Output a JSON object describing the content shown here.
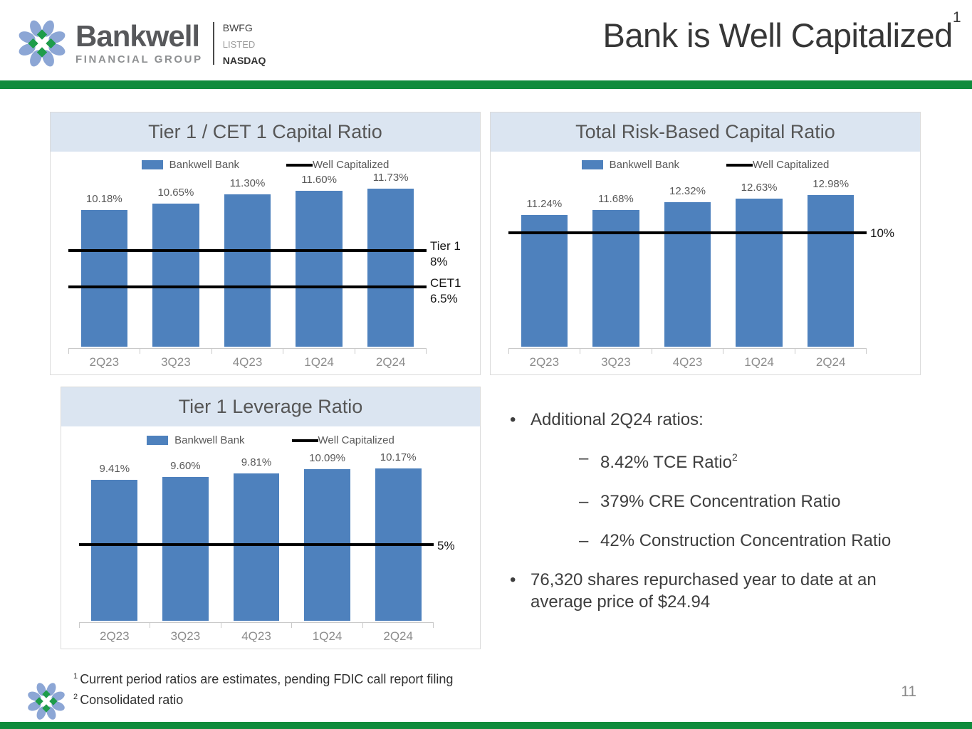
{
  "header": {
    "logo_name": "Bankwell",
    "logo_subname": "FINANCIAL GROUP",
    "ticker": "BWFG",
    "listed": "LISTED",
    "exchange": "NASDAQ",
    "title": "Bank is Well Capitalized",
    "title_superscript": "1"
  },
  "colors": {
    "accent_green": "#0f8b3c",
    "bar_blue": "#4e81bd",
    "panel_header_blue": "#dbe5f1",
    "threshold_black": "#000000"
  },
  "chart_data": [
    {
      "type": "bar",
      "title": "Tier 1 / CET 1 Capital Ratio",
      "legend": [
        "Bankwell Bank",
        "Well Capitalized"
      ],
      "categories": [
        "2Q23",
        "3Q23",
        "4Q23",
        "1Q24",
        "2Q24"
      ],
      "values": [
        10.18,
        10.65,
        11.3,
        11.6,
        11.73
      ],
      "value_labels": [
        "10.18%",
        "10.65%",
        "11.30%",
        "11.60%",
        "11.73%"
      ],
      "threshold_lines": [
        {
          "label": "Tier 1",
          "sublabel": "8%",
          "value": 8,
          "pos_pct": 55.6
        },
        {
          "label": "CET1",
          "sublabel": "6.5%",
          "value": 6.5,
          "pos_pct": 34.2
        }
      ],
      "ylim": [
        0,
        12.7
      ],
      "grid": false,
      "legend_position": "top"
    },
    {
      "type": "bar",
      "title": "Total Risk-Based Capital Ratio",
      "legend": [
        "Bankwell Bank",
        "Well Capitalized"
      ],
      "categories": [
        "2Q23",
        "3Q23",
        "4Q23",
        "1Q24",
        "2Q24"
      ],
      "values": [
        11.24,
        11.68,
        12.32,
        12.63,
        12.98
      ],
      "value_labels": [
        "11.24%",
        "11.68%",
        "12.32%",
        "12.63%",
        "12.98%"
      ],
      "threshold_lines": [
        {
          "label": "10%",
          "sublabel": null,
          "value": 10,
          "pos_pct": 66.0
        }
      ],
      "ylim": [
        0,
        14.6
      ],
      "grid": false,
      "legend_position": "top"
    },
    {
      "type": "bar",
      "title": "Tier 1 Leverage Ratio",
      "legend": [
        "Bankwell Bank",
        "Well Capitalized"
      ],
      "categories": [
        "2Q23",
        "3Q23",
        "4Q23",
        "1Q24",
        "2Q24"
      ],
      "values": [
        9.41,
        9.6,
        9.81,
        10.09,
        10.17
      ],
      "value_labels": [
        "9.41%",
        "9.60%",
        "9.81%",
        "10.09%",
        "10.17%"
      ],
      "threshold_lines": [
        {
          "label": "5%",
          "sublabel": null,
          "value": 5,
          "pos_pct": 44.6
        }
      ],
      "ylim": [
        0,
        11.2
      ],
      "grid": false,
      "legend_position": "top"
    }
  ],
  "bullets": {
    "items": [
      {
        "type": "main",
        "marker": "•",
        "text": "Additional 2Q24 ratios:",
        "sup": null
      },
      {
        "type": "sub",
        "marker": "–",
        "text": "8.42% TCE Ratio",
        "sup": "2"
      },
      {
        "type": "sub",
        "marker": "–",
        "text": "379% CRE Concentration Ratio",
        "sup": null
      },
      {
        "type": "sub",
        "marker": "–",
        "text": "42% Construction Concentration Ratio",
        "sup": null
      },
      {
        "type": "main",
        "marker": "•",
        "text": "76,320 shares repurchased year to date at an average price of $24.94",
        "sup": null
      }
    ]
  },
  "footnotes": [
    {
      "sup": "1",
      "text": "Current period ratios are estimates, pending FDIC call report filing"
    },
    {
      "sup": "2",
      "text": "Consolidated ratio"
    }
  ],
  "page_number": "11"
}
